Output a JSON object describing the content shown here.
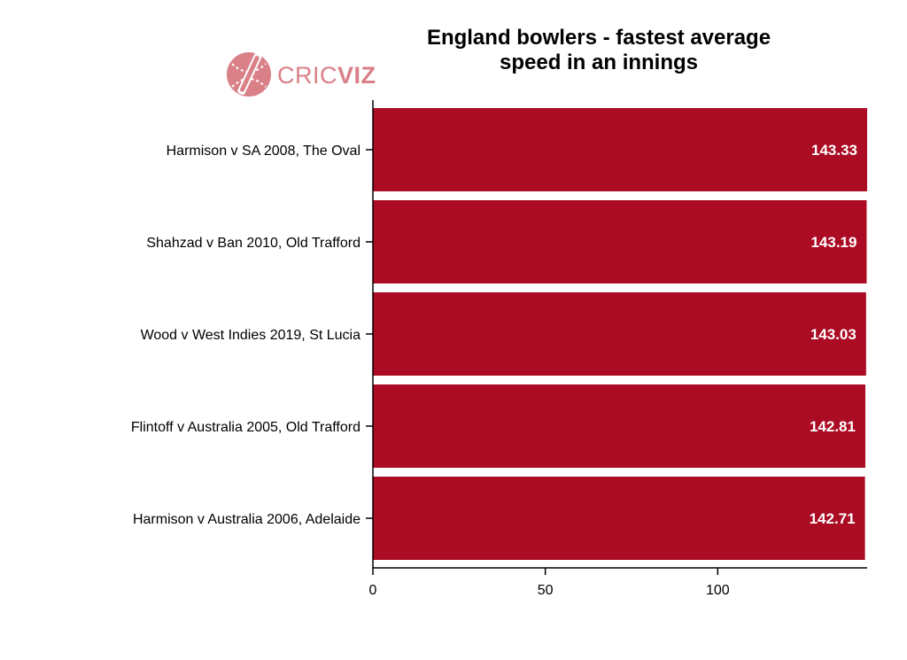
{
  "logo": {
    "part1": "CRIC",
    "part2": "VIZ",
    "color": "#d98088"
  },
  "chart_data": {
    "type": "bar",
    "orientation": "horizontal",
    "title_lines": [
      "England bowlers - fastest average",
      "speed in an innings"
    ],
    "categories": [
      "Harmison v SA 2008, The Oval",
      "Shahzad v Ban 2010, Old Trafford",
      "Wood v West Indies 2019, St Lucia",
      "Flintoff v Australia 2005, Old Trafford",
      "Harmison v Australia 2006, Adelaide"
    ],
    "values": [
      143.33,
      143.19,
      143.03,
      142.81,
      142.71
    ],
    "value_labels": [
      "143.33",
      "143.19",
      "143.03",
      "142.81",
      "142.71"
    ],
    "xticks": [
      0,
      50,
      100
    ],
    "xlim": [
      0,
      143.33
    ],
    "xlabel": "",
    "ylabel": "",
    "bar_color": "#ab0b23",
    "grid": false,
    "legend": "none"
  }
}
